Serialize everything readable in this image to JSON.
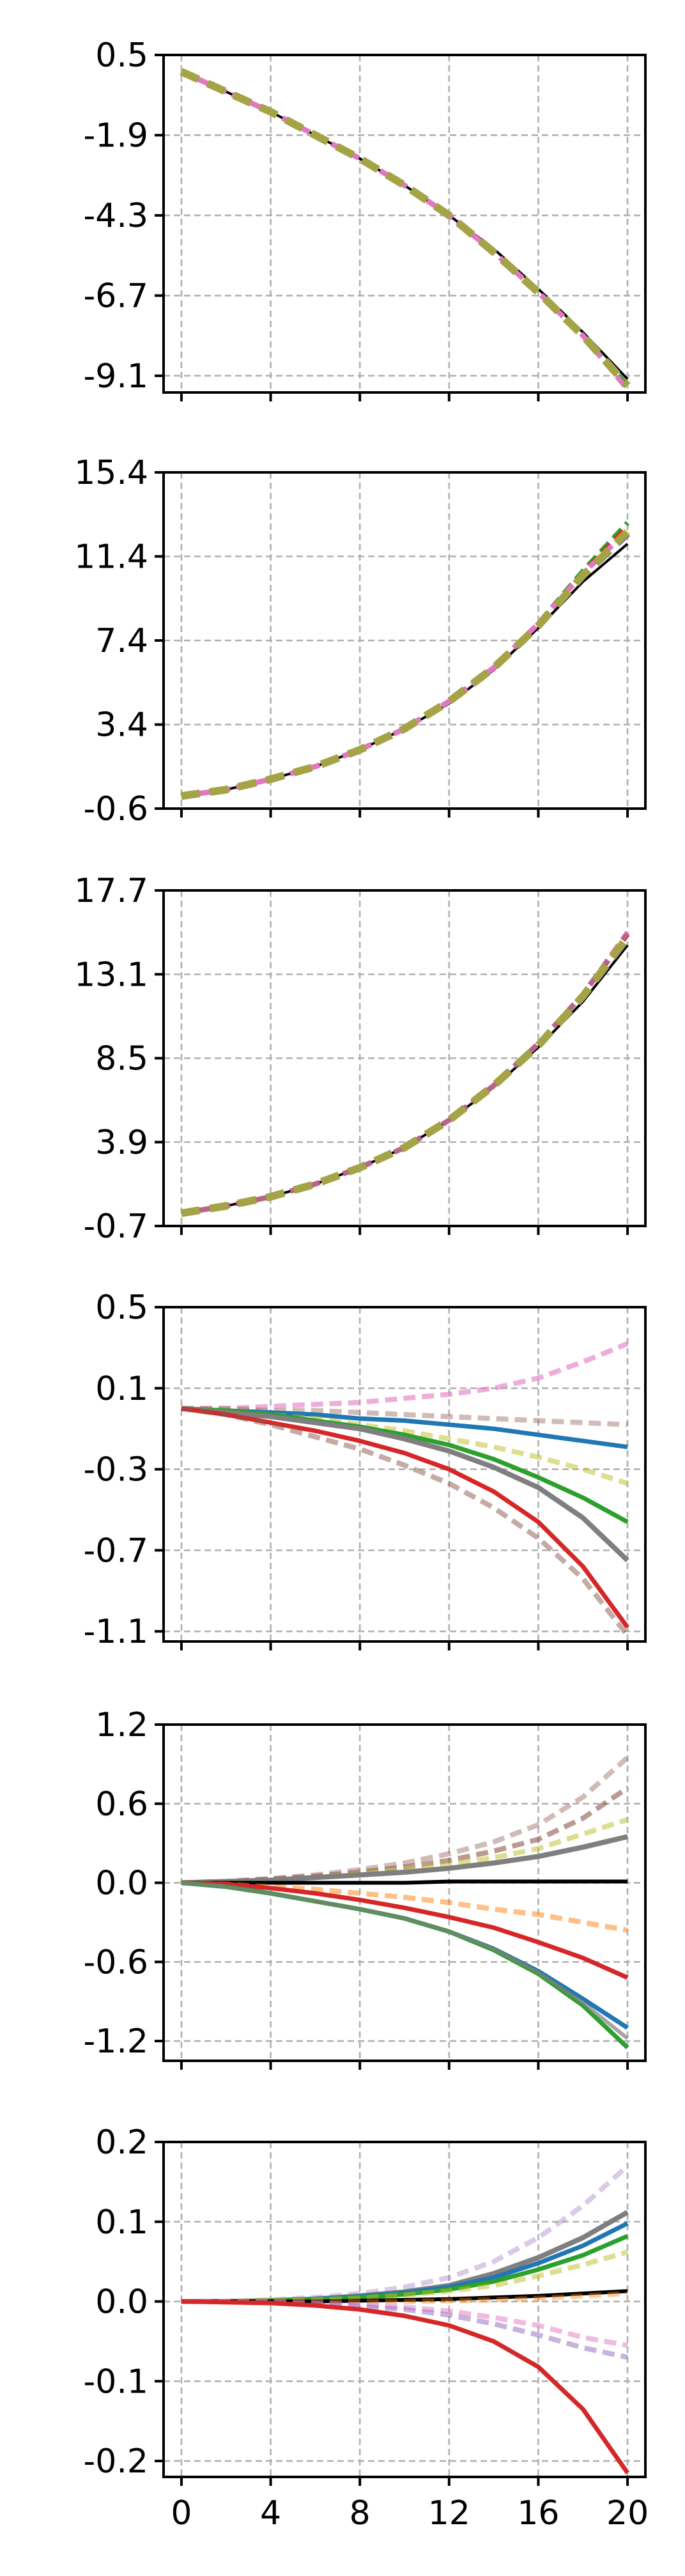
{
  "chart_data": [
    {
      "type": "line",
      "x": [
        0,
        2,
        4,
        6,
        8,
        10,
        12,
        14,
        16,
        18,
        20
      ],
      "x_ticks": [
        0,
        4,
        8,
        12,
        16,
        20
      ],
      "ylim": [
        -9.6,
        0.5
      ],
      "y_ticks": [
        "0.5",
        "-1.9",
        "-4.3",
        "-6.7",
        "-9.1"
      ],
      "grid": true,
      "series": [
        {
          "color": "#000000",
          "style": "solid",
          "width": 4,
          "values": [
            0,
            -0.6,
            -1.2,
            -1.9,
            -2.6,
            -3.4,
            -4.3,
            -5.3,
            -6.5,
            -7.8,
            -9.2
          ]
        },
        {
          "color": "#d62728",
          "style": "dashed",
          "width": 8,
          "values": [
            0,
            -0.6,
            -1.2,
            -1.9,
            -2.6,
            -3.4,
            -4.3,
            -5.4,
            -6.6,
            -7.9,
            -9.5
          ]
        },
        {
          "color": "#2ca02c",
          "style": "dashed",
          "width": 8,
          "values": [
            0,
            -0.6,
            -1.2,
            -1.9,
            -2.6,
            -3.4,
            -4.3,
            -5.4,
            -6.6,
            -7.9,
            -9.4
          ]
        },
        {
          "color": "#e377c2",
          "style": "dashed",
          "width": 8,
          "values": [
            0,
            -0.6,
            -1.2,
            -1.9,
            -2.6,
            -3.4,
            -4.3,
            -5.4,
            -6.6,
            -7.9,
            -9.5
          ]
        },
        {
          "color": "#7f7f7f",
          "style": "dashed",
          "width": 12,
          "values": [
            0,
            -0.6,
            -1.2,
            -1.9,
            -2.6,
            -3.4,
            -4.3,
            -5.4,
            -6.6,
            -7.9,
            -9.4
          ]
        },
        {
          "color": "#bcbd22",
          "style": "dashed",
          "width": 12,
          "opacity": 0.6,
          "values": [
            0,
            -0.6,
            -1.2,
            -1.9,
            -2.6,
            -3.4,
            -4.3,
            -5.4,
            -6.6,
            -7.9,
            -9.4
          ]
        }
      ]
    },
    {
      "type": "line",
      "x": [
        0,
        2,
        4,
        6,
        8,
        10,
        12,
        14,
        16,
        18,
        20
      ],
      "x_ticks": [
        0,
        4,
        8,
        12,
        16,
        20
      ],
      "ylim": [
        -0.6,
        15.4
      ],
      "y_ticks": [
        "15.4",
        "11.4",
        "7.4",
        "3.4",
        "-0.6"
      ],
      "grid": true,
      "series": [
        {
          "color": "#000000",
          "style": "solid",
          "width": 4,
          "values": [
            0,
            0.3,
            0.8,
            1.4,
            2.2,
            3.2,
            4.4,
            6.0,
            8.0,
            10.2,
            12.0
          ]
        },
        {
          "color": "#2ca02c",
          "style": "dashed",
          "width": 8,
          "values": [
            0,
            0.3,
            0.8,
            1.4,
            2.2,
            3.2,
            4.5,
            6.1,
            8.2,
            10.7,
            13.0
          ]
        },
        {
          "color": "#d62728",
          "style": "dashed",
          "width": 8,
          "values": [
            0,
            0.3,
            0.8,
            1.4,
            2.2,
            3.2,
            4.5,
            6.1,
            8.2,
            10.6,
            12.8
          ]
        },
        {
          "color": "#e377c2",
          "style": "dashed",
          "width": 8,
          "values": [
            0,
            0.3,
            0.8,
            1.4,
            2.2,
            3.2,
            4.5,
            6.1,
            8.2,
            10.6,
            12.6
          ]
        },
        {
          "color": "#7f7f7f",
          "style": "dashed",
          "width": 12,
          "values": [
            0,
            0.3,
            0.8,
            1.4,
            2.2,
            3.2,
            4.5,
            6.1,
            8.1,
            10.5,
            12.5
          ]
        },
        {
          "color": "#bcbd22",
          "style": "dashed",
          "width": 12,
          "opacity": 0.6,
          "values": [
            0,
            0.3,
            0.8,
            1.4,
            2.2,
            3.2,
            4.5,
            6.1,
            8.1,
            10.5,
            12.6
          ]
        }
      ]
    },
    {
      "type": "line",
      "x": [
        0,
        2,
        4,
        6,
        8,
        10,
        12,
        14,
        16,
        18,
        20
      ],
      "x_ticks": [
        0,
        4,
        8,
        12,
        16,
        20
      ],
      "ylim": [
        -0.7,
        17.7
      ],
      "y_ticks": [
        "17.7",
        "13.1",
        "8.5",
        "3.9",
        "-0.7"
      ],
      "grid": true,
      "series": [
        {
          "color": "#000000",
          "style": "solid",
          "width": 4,
          "values": [
            0,
            0.4,
            0.9,
            1.6,
            2.5,
            3.6,
            5.1,
            6.9,
            9.1,
            11.6,
            14.7
          ]
        },
        {
          "color": "#d62728",
          "style": "dashed",
          "width": 8,
          "values": [
            0,
            0.4,
            0.9,
            1.6,
            2.5,
            3.6,
            5.1,
            7.0,
            9.3,
            12.0,
            15.3
          ]
        },
        {
          "color": "#e377c2",
          "style": "dashed",
          "width": 8,
          "values": [
            0,
            0.4,
            0.9,
            1.6,
            2.5,
            3.6,
            5.1,
            7.0,
            9.3,
            12.0,
            15.4
          ]
        },
        {
          "color": "#8c564b",
          "style": "dashed",
          "width": 8,
          "opacity": 0.5,
          "values": [
            0,
            0.4,
            0.9,
            1.6,
            2.5,
            3.6,
            5.1,
            7.0,
            9.3,
            12.0,
            15.3
          ]
        },
        {
          "color": "#7f7f7f",
          "style": "dashed",
          "width": 12,
          "values": [
            0,
            0.4,
            0.9,
            1.6,
            2.5,
            3.6,
            5.1,
            7.0,
            9.2,
            11.9,
            15.1
          ]
        },
        {
          "color": "#bcbd22",
          "style": "dashed",
          "width": 12,
          "opacity": 0.6,
          "values": [
            0,
            0.4,
            0.9,
            1.6,
            2.5,
            3.6,
            5.1,
            7.0,
            9.2,
            11.9,
            15.2
          ]
        }
      ]
    },
    {
      "type": "line",
      "x": [
        0,
        2,
        4,
        6,
        8,
        10,
        12,
        14,
        16,
        18,
        20
      ],
      "x_ticks": [
        0,
        4,
        8,
        12,
        16,
        20
      ],
      "ylim": [
        -1.15,
        0.5
      ],
      "y_ticks": [
        "0.5",
        "0.1",
        "-0.3",
        "-0.7",
        "-1.1"
      ],
      "grid": true,
      "series": [
        {
          "color": "#e377c2",
          "style": "dashed",
          "width": 8,
          "opacity": 0.6,
          "values": [
            0,
            0.0,
            0.01,
            0.02,
            0.03,
            0.05,
            0.07,
            0.1,
            0.15,
            0.23,
            0.32
          ]
        },
        {
          "color": "#8c564b",
          "style": "dashed",
          "width": 8,
          "opacity": 0.4,
          "values": [
            0,
            -0.0,
            -0.01,
            -0.01,
            -0.02,
            -0.03,
            -0.04,
            -0.05,
            -0.06,
            -0.07,
            -0.08
          ]
        },
        {
          "color": "#1f77b4",
          "style": "solid",
          "width": 7,
          "values": [
            0,
            -0.01,
            -0.02,
            -0.03,
            -0.05,
            -0.06,
            -0.08,
            -0.1,
            -0.13,
            -0.16,
            -0.19
          ]
        },
        {
          "color": "#bcbd22",
          "style": "dashed",
          "width": 8,
          "opacity": 0.5,
          "values": [
            0,
            -0.01,
            -0.03,
            -0.05,
            -0.08,
            -0.11,
            -0.15,
            -0.19,
            -0.24,
            -0.3,
            -0.37
          ]
        },
        {
          "color": "#2ca02c",
          "style": "solid",
          "width": 7,
          "values": [
            0,
            -0.01,
            -0.03,
            -0.06,
            -0.09,
            -0.13,
            -0.18,
            -0.25,
            -0.34,
            -0.44,
            -0.56
          ]
        },
        {
          "color": "#7f7f7f",
          "style": "solid",
          "width": 8,
          "values": [
            0,
            -0.02,
            -0.04,
            -0.07,
            -0.1,
            -0.15,
            -0.21,
            -0.29,
            -0.39,
            -0.54,
            -0.75
          ]
        },
        {
          "color": "#d62728",
          "style": "solid",
          "width": 7,
          "values": [
            0,
            -0.03,
            -0.07,
            -0.11,
            -0.16,
            -0.22,
            -0.3,
            -0.41,
            -0.56,
            -0.78,
            -1.08
          ]
        },
        {
          "color": "#8c564b",
          "style": "dashed",
          "width": 8,
          "opacity": 0.5,
          "values": [
            0,
            -0.03,
            -0.08,
            -0.14,
            -0.2,
            -0.28,
            -0.37,
            -0.49,
            -0.64,
            -0.84,
            -1.12
          ]
        }
      ]
    },
    {
      "type": "line",
      "x": [
        0,
        2,
        4,
        6,
        8,
        10,
        12,
        14,
        16,
        18,
        20
      ],
      "x_ticks": [
        0,
        4,
        8,
        12,
        16,
        20
      ],
      "ylim": [
        -1.35,
        1.2
      ],
      "y_ticks": [
        "1.2",
        "0.6",
        "0.0",
        "-0.6",
        "-1.2"
      ],
      "grid": true,
      "series": [
        {
          "color": "#8c564b",
          "style": "dashed",
          "width": 8,
          "opacity": 0.4,
          "values": [
            0,
            0.01,
            0.03,
            0.06,
            0.1,
            0.15,
            0.22,
            0.31,
            0.44,
            0.65,
            0.95
          ]
        },
        {
          "color": "#8c564b",
          "style": "dashed",
          "width": 8,
          "opacity": 0.6,
          "values": [
            0,
            0.01,
            0.03,
            0.05,
            0.08,
            0.12,
            0.17,
            0.24,
            0.33,
            0.49,
            0.72
          ]
        },
        {
          "color": "#bcbd22",
          "style": "dashed",
          "width": 8,
          "opacity": 0.5,
          "values": [
            0,
            0.01,
            0.02,
            0.04,
            0.07,
            0.1,
            0.14,
            0.19,
            0.26,
            0.37,
            0.48
          ]
        },
        {
          "color": "#7f7f7f",
          "style": "solid",
          "width": 8,
          "values": [
            0,
            0.01,
            0.02,
            0.04,
            0.06,
            0.08,
            0.11,
            0.15,
            0.2,
            0.27,
            0.35
          ]
        },
        {
          "color": "#000000",
          "style": "solid",
          "width": 6,
          "values": [
            0,
            0.0,
            0.0,
            0.0,
            0.0,
            0.0,
            0.01,
            0.01,
            0.01,
            0.01,
            0.01
          ]
        },
        {
          "color": "#ff7f0e",
          "style": "dashed",
          "width": 8,
          "opacity": 0.5,
          "values": [
            0,
            -0.01,
            -0.03,
            -0.05,
            -0.08,
            -0.11,
            -0.15,
            -0.2,
            -0.24,
            -0.3,
            -0.36
          ]
        },
        {
          "color": "#d62728",
          "style": "solid",
          "width": 7,
          "values": [
            0,
            -0.01,
            -0.04,
            -0.08,
            -0.13,
            -0.19,
            -0.26,
            -0.34,
            -0.45,
            -0.57,
            -0.72
          ]
        },
        {
          "color": "#1f77b4",
          "style": "solid",
          "width": 7,
          "values": [
            0,
            -0.03,
            -0.08,
            -0.14,
            -0.2,
            -0.27,
            -0.37,
            -0.5,
            -0.67,
            -0.88,
            -1.1
          ]
        },
        {
          "color": "#2ca02c",
          "style": "solid",
          "width": 7,
          "values": [
            0,
            -0.03,
            -0.08,
            -0.14,
            -0.2,
            -0.27,
            -0.37,
            -0.51,
            -0.69,
            -0.93,
            -1.25
          ]
        },
        {
          "color": "#7f7f7f",
          "style": "solid",
          "width": 6,
          "opacity": 0.7,
          "values": [
            0,
            -0.03,
            -0.08,
            -0.14,
            -0.2,
            -0.27,
            -0.37,
            -0.5,
            -0.68,
            -0.91,
            -1.18
          ]
        }
      ]
    },
    {
      "type": "line",
      "x": [
        0,
        2,
        4,
        6,
        8,
        10,
        12,
        14,
        16,
        18,
        20
      ],
      "x_ticks": [
        0,
        4,
        8,
        12,
        16,
        20
      ],
      "ylim": [
        -0.22,
        0.2
      ],
      "y_ticks": [
        "0.2",
        "0.1",
        "0.0",
        "-0.1",
        "-0.2"
      ],
      "grid": true,
      "series": [
        {
          "color": "#9467bd",
          "style": "dashed",
          "width": 8,
          "opacity": 0.35,
          "values": [
            0,
            0.0,
            0.002,
            0.005,
            0.01,
            0.018,
            0.03,
            0.05,
            0.08,
            0.12,
            0.17
          ]
        },
        {
          "color": "#7f7f7f",
          "style": "solid",
          "width": 8,
          "values": [
            0,
            0.0,
            0.001,
            0.003,
            0.007,
            0.012,
            0.02,
            0.035,
            0.055,
            0.08,
            0.112
          ]
        },
        {
          "color": "#1f77b4",
          "style": "solid",
          "width": 7,
          "values": [
            0,
            0.0,
            0.001,
            0.003,
            0.006,
            0.011,
            0.018,
            0.03,
            0.048,
            0.07,
            0.098
          ]
        },
        {
          "color": "#2ca02c",
          "style": "solid",
          "width": 7,
          "values": [
            0,
            0.0,
            0.001,
            0.002,
            0.005,
            0.009,
            0.015,
            0.025,
            0.04,
            0.058,
            0.082
          ]
        },
        {
          "color": "#bcbd22",
          "style": "dashed",
          "width": 8,
          "opacity": 0.5,
          "values": [
            0,
            0.0,
            0.001,
            0.002,
            0.004,
            0.008,
            0.013,
            0.02,
            0.032,
            0.046,
            0.062
          ]
        },
        {
          "color": "#000000",
          "style": "solid",
          "width": 6,
          "values": [
            0,
            0.0,
            0.0,
            0.0,
            0.001,
            0.002,
            0.003,
            0.005,
            0.007,
            0.01,
            0.013
          ]
        },
        {
          "color": "#ff7f0e",
          "style": "dashed",
          "width": 8,
          "opacity": 0.4,
          "values": [
            0,
            0.0,
            0.0,
            0.0,
            0.0,
            0.0,
            0.001,
            0.002,
            0.004,
            0.007,
            0.01
          ]
        },
        {
          "color": "#e377c2",
          "style": "dashed",
          "width": 8,
          "opacity": 0.5,
          "values": [
            0,
            0.0,
            -0.001,
            -0.002,
            -0.004,
            -0.007,
            -0.012,
            -0.02,
            -0.03,
            -0.045,
            -0.055
          ]
        },
        {
          "color": "#9467bd",
          "style": "dashed",
          "width": 8,
          "opacity": 0.5,
          "values": [
            0,
            0.0,
            -0.001,
            -0.003,
            -0.006,
            -0.01,
            -0.017,
            -0.028,
            -0.042,
            -0.058,
            -0.07
          ]
        },
        {
          "color": "#d62728",
          "style": "solid",
          "width": 7,
          "values": [
            0,
            -0.001,
            -0.002,
            -0.005,
            -0.01,
            -0.018,
            -0.03,
            -0.05,
            -0.082,
            -0.135,
            -0.215
          ]
        }
      ]
    }
  ]
}
